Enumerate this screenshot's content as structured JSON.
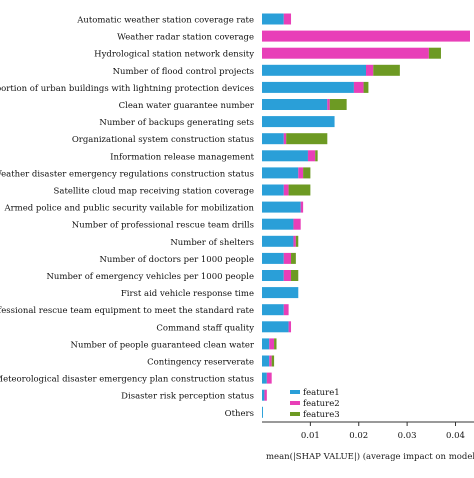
{
  "chart_data": {
    "type": "bar",
    "orientation": "horizontal",
    "stacked": true,
    "xlabel": "mean(|SHAP VALUE|) (average impact on model",
    "xlim": [
      0,
      0.043
    ],
    "xticks": [
      "0.01",
      "0.02",
      "0.03",
      "0.04"
    ],
    "xtick_values": [
      0.01,
      0.02,
      0.03,
      0.04
    ],
    "grid": false,
    "legend_position": "bottom-right",
    "categories": [
      "Automatic weather station coverage rate",
      "Weather radar station coverage",
      "Hydrological station network density",
      "Number of flood control projects",
      "Proportion of urban buildings with lightning protection devices",
      "Clean water guarantee number",
      "Number of backups generating sets",
      "Organizational system construction status",
      "Information release management",
      "Weather disaster emergency regulations construction status",
      "Satellite cloud map receiving station coverage",
      "Armed police and public security vailable for mobilization",
      "Number of professional rescue team drills",
      "Number of shelters",
      "Number of doctors per 1000 people",
      "Number of emergency vehicles per 1000 people",
      "First aid vehicle response time",
      "Professional rescue team equipment to meet the standard rate",
      "Command staff quality",
      "Number of people guaranteed clean water",
      "Contingency reserverate",
      "Meteorological disaster emergency plan construction status",
      "Disaster risk perception status",
      "Others"
    ],
    "series": [
      {
        "name": "feature1",
        "color": "#2a9fd8",
        "values": [
          0.0045,
          0.0,
          0.0,
          0.0215,
          0.019,
          0.0135,
          0.015,
          0.0045,
          0.0095,
          0.0075,
          0.0045,
          0.008,
          0.0065,
          0.0065,
          0.0045,
          0.0045,
          0.0075,
          0.0045,
          0.0055,
          0.0015,
          0.0015,
          0.001,
          0.0005,
          0.0002
        ]
      },
      {
        "name": "feature2",
        "color": "#e83fb8",
        "values": [
          0.0015,
          0.043,
          0.0345,
          0.0015,
          0.002,
          0.0005,
          0.0,
          0.0005,
          0.0015,
          0.001,
          0.001,
          0.0005,
          0.0015,
          0.0005,
          0.0015,
          0.0015,
          0.0,
          0.001,
          0.0005,
          0.001,
          0.0005,
          0.001,
          0.0005,
          0.0
        ]
      },
      {
        "name": "feature3",
        "color": "#6d9a23",
        "values": [
          0.0,
          0.0,
          0.0025,
          0.0055,
          0.001,
          0.0035,
          0.0,
          0.0085,
          0.0005,
          0.0015,
          0.0045,
          0.0,
          0.0,
          0.0005,
          0.001,
          0.0015,
          0.0,
          0.0,
          0.0,
          0.0005,
          0.0005,
          0.0,
          0.0,
          0.0
        ]
      }
    ]
  }
}
